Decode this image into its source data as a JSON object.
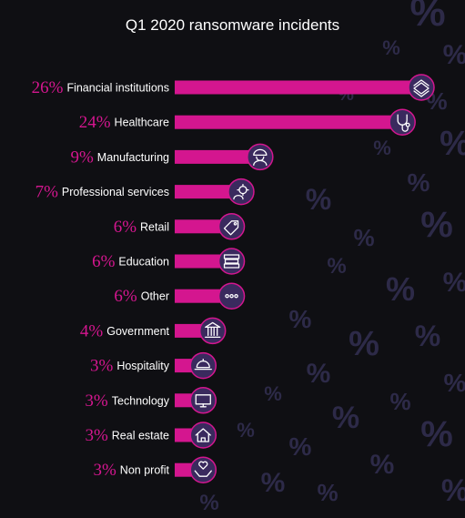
{
  "chart_data": {
    "type": "bar",
    "title": "Q1 2020 ransomware incidents",
    "categories": [
      "Financial institutions",
      "Healthcare",
      "Manufacturing",
      "Professional services",
      "Retail",
      "Education",
      "Other",
      "Government",
      "Hospitality",
      "Technology",
      "Real estate",
      "Non profit"
    ],
    "values": [
      26,
      24,
      9,
      7,
      6,
      6,
      6,
      4,
      3,
      3,
      3,
      3
    ],
    "value_labels": [
      "26%",
      "24%",
      "9%",
      "7%",
      "6%",
      "6%",
      "6%",
      "4%",
      "3%",
      "3%",
      "3%",
      "3%"
    ],
    "icons": [
      "money-stack-icon",
      "stethoscope-icon",
      "hard-hat-worker-icon",
      "gear-person-icon",
      "price-tag-icon",
      "books-icon",
      "ellipsis-icon",
      "government-building-icon",
      "cloche-icon",
      "computer-icon",
      "house-icon",
      "hands-heart-icon"
    ],
    "orientation": "horizontal",
    "bar_color": "#d4168f",
    "background_color": "#0f0f13",
    "icon_circle_color": "#3a2a5e",
    "grid": false
  }
}
